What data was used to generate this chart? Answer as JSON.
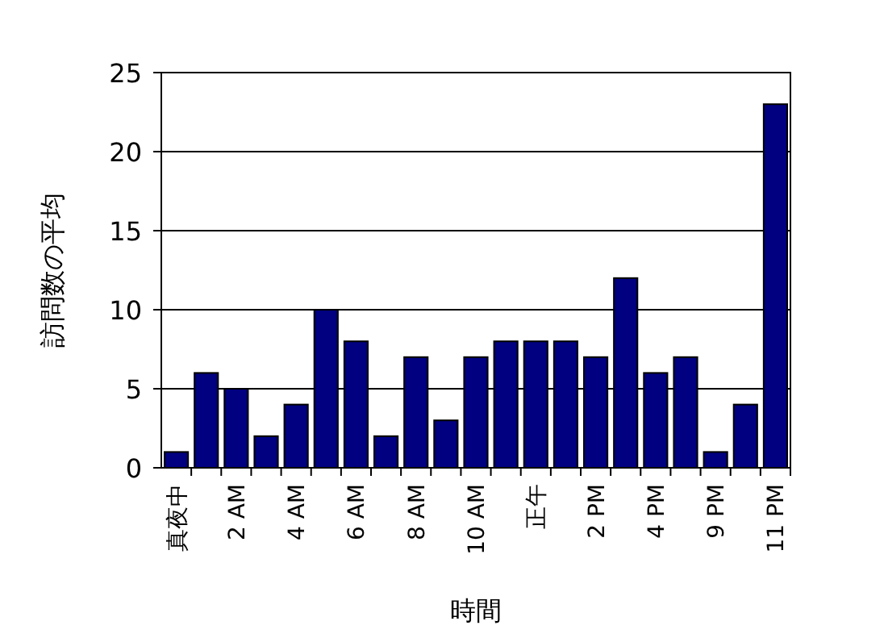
{
  "chart_data": {
    "type": "bar",
    "xlabel": "時間",
    "ylabel": "訪問数の平均",
    "categories": [
      "真夜中",
      null,
      "2 AM",
      null,
      "4 AM",
      null,
      "6 AM",
      null,
      "8 AM",
      null,
      "10 AM",
      null,
      "正午",
      null,
      "2 PM",
      null,
      "4 PM",
      null,
      "9 PM",
      null,
      "11 PM"
    ],
    "values": [
      1,
      6,
      5,
      2,
      4,
      10,
      8,
      2,
      7,
      3,
      7,
      8,
      8,
      8,
      7,
      12,
      6,
      7,
      1,
      4,
      23
    ],
    "color": "#000080",
    "ylim": [
      0,
      25
    ],
    "yticks": [
      0,
      5,
      10,
      15,
      20,
      25
    ],
    "grid": "y"
  }
}
